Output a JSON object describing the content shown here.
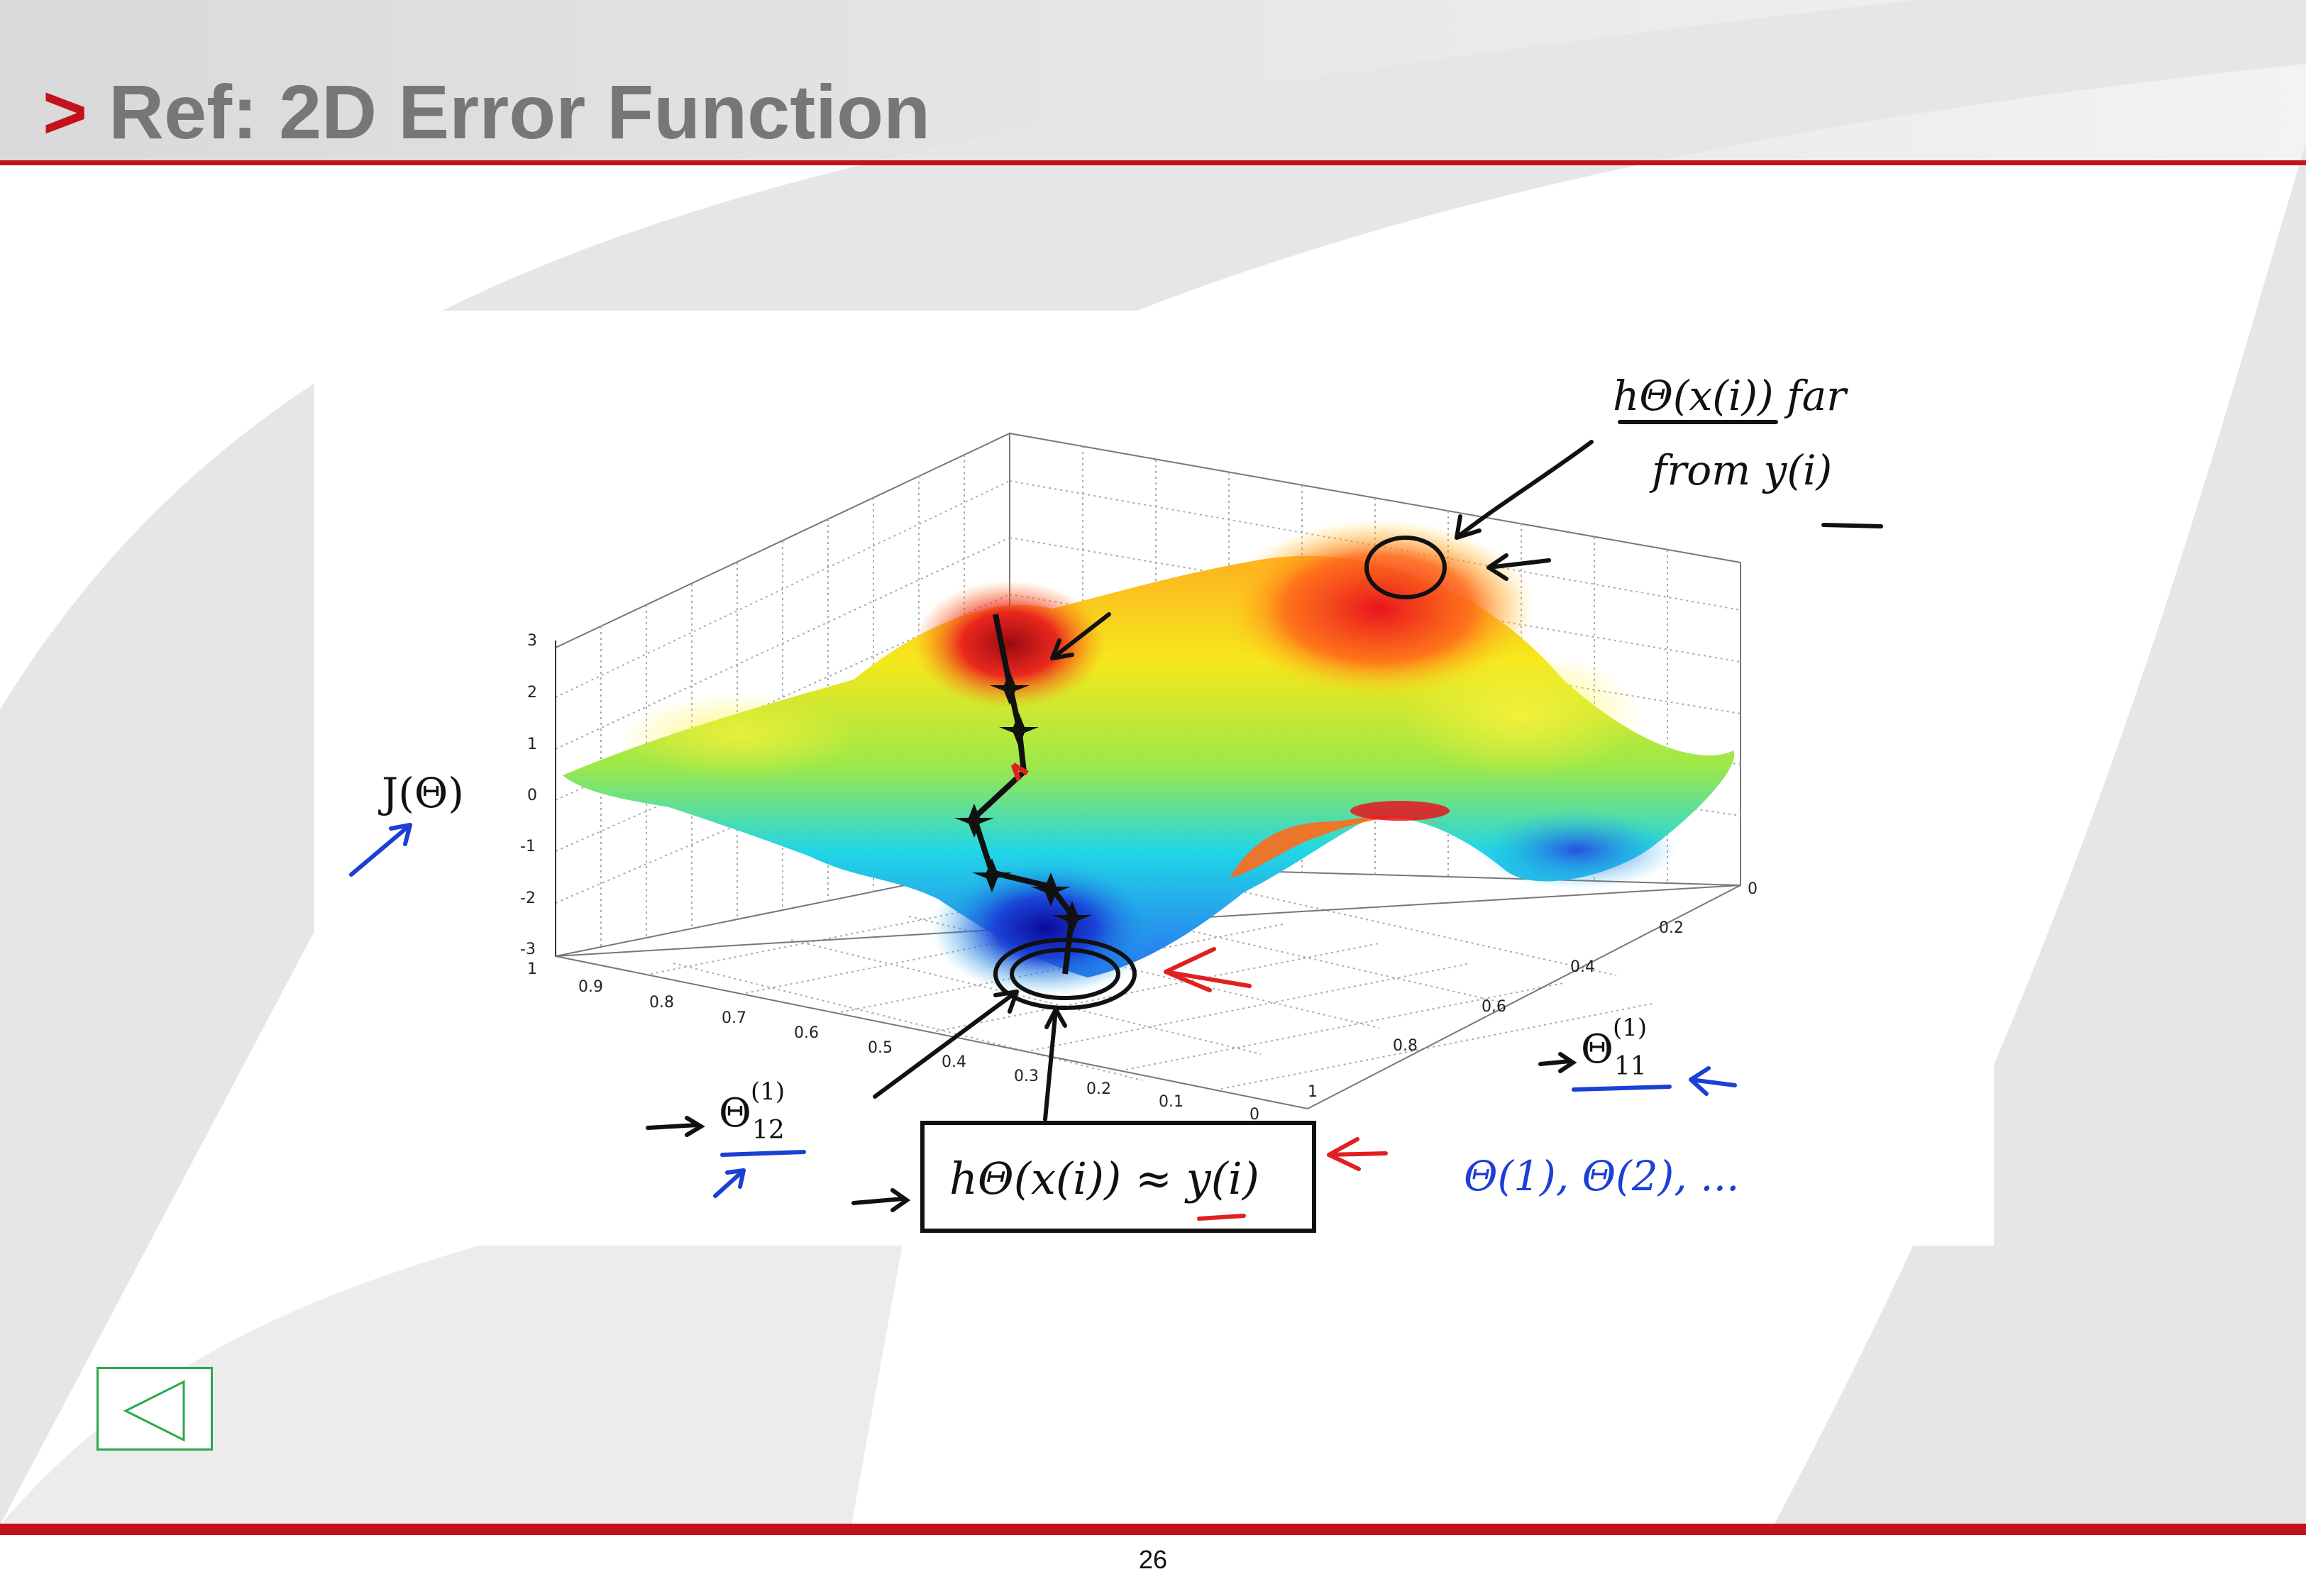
{
  "slide": {
    "title_marker": ">",
    "title": "Ref: 2D Error Function",
    "page_number": "26",
    "accent_color": "#c4121a",
    "nav_color": "#2aa84a"
  },
  "figure": {
    "z_ticks": [
      "3",
      "2",
      "1",
      "0",
      "-1",
      "-2",
      "-3"
    ],
    "left_axis_ticks": [
      "1",
      "0.9",
      "0.8",
      "0.7",
      "0.6",
      "0.5",
      "0.4",
      "0.3",
      "0.2",
      "0.1",
      "0"
    ],
    "right_axis_ticks": [
      "0",
      "0.2",
      "0.4",
      "0.6",
      "0.8",
      "1"
    ],
    "z_label": "J(Θ)",
    "axis_label_right": {
      "base": "Θ",
      "sup": "(1)",
      "sub": "11"
    },
    "axis_label_left": {
      "base": "Θ",
      "sup": "(1)",
      "sub": "12"
    },
    "ink_notes": {
      "top_right_line1": "hΘ(x(i))  far",
      "top_right_line2": "from  y(i)",
      "boxed_note": "hΘ(x(i)) ≈ y(i)",
      "params_note": "Θ(1), Θ(2), ..."
    },
    "colors": {
      "surface_high": "#e8141e",
      "surface_mid": "#f5e81c",
      "surface_low": "#21b7e6",
      "surface_min": "#1a1ab8",
      "ink_black": "#111111",
      "ink_red": "#e02020",
      "ink_blue": "#1c3fd6"
    }
  },
  "nav": {
    "back_icon": "back-triangle-icon"
  }
}
